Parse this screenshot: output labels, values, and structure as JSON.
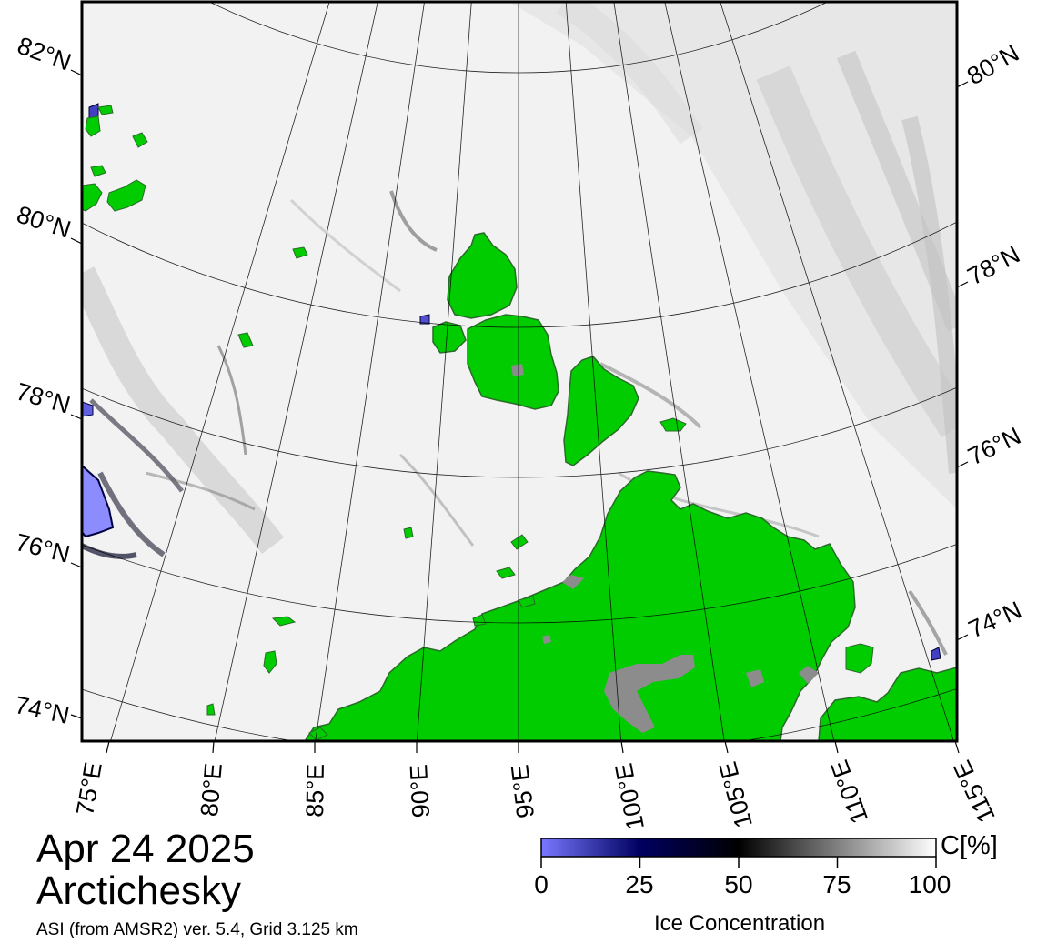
{
  "map": {
    "title_date": "Apr 24 2025",
    "title_region": "Arctichesky",
    "source_note": "ASI (from AMSR2) ver. 5.4,  Grid 3.125 km",
    "projection": "polar-stereographic",
    "lon_labels": [
      "75°E",
      "80°E",
      "85°E",
      "90°E",
      "95°E",
      "100°E",
      "105°E",
      "110°E",
      "115°E"
    ],
    "lat_labels_left": [
      "82°N",
      "80°N",
      "78°N",
      "76°N",
      "74°N"
    ],
    "lat_labels_right": [
      "80°N",
      "78°N",
      "76°N",
      "74°N"
    ],
    "colors": {
      "land": "#00cc00",
      "land_edge": "#2a6a2a",
      "coast_mask": "#8c8c8c",
      "open_water": "#ffffff",
      "low_concentration": "#7070ff",
      "frame": "#000000"
    },
    "legend": {
      "title": "Ice Concentration",
      "unit": "C[%]",
      "ticks": [
        "0",
        "25",
        "50",
        "75",
        "100"
      ],
      "range": [
        0,
        100
      ],
      "gradient": [
        "#7878ff",
        "#000060",
        "#000000",
        "#808080",
        "#ffffff"
      ]
    }
  }
}
